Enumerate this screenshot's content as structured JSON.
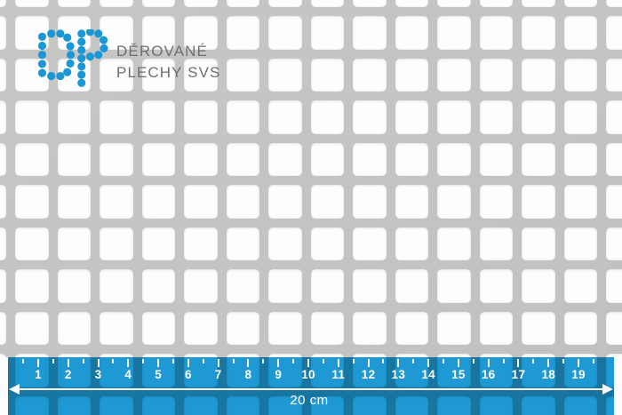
{
  "brand": {
    "initials": "DP",
    "line1": "DĚROVANÉ",
    "line2": "PLECHY SVS"
  },
  "ruler": {
    "cm_numbers": [
      "1",
      "2",
      "3",
      "4",
      "5",
      "6",
      "7",
      "8",
      "9",
      "10",
      "11",
      "12",
      "13",
      "14",
      "15",
      "16",
      "17",
      "18",
      "19"
    ],
    "length_label": "20 cm"
  },
  "colors": {
    "logo_blue": "#1a97d5",
    "ruler_blue": "#1e9ad5",
    "metal_grey": "#c5c4c2",
    "hole_white": "#fdfdfd",
    "brand_text_grey": "#6e6e6e"
  }
}
